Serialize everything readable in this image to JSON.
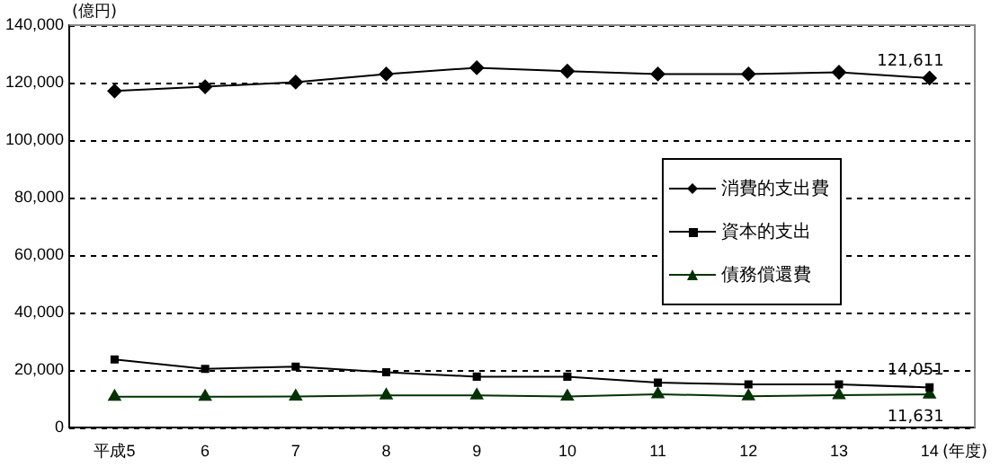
{
  "chart_data": {
    "type": "line",
    "ylabel": "(億円)",
    "categories": [
      "平成5",
      "6",
      "7",
      "8",
      "9",
      "10",
      "11",
      "12",
      "13",
      "14"
    ],
    "series": [
      {
        "name": "消費的支出費",
        "color": "#000000",
        "marker": "diamond",
        "values": [
          117100,
          118600,
          120200,
          123000,
          125200,
          124000,
          123000,
          123000,
          123600,
          121611
        ]
      },
      {
        "name": "資本的支出",
        "color": "#000000",
        "marker": "square",
        "values": [
          23800,
          20500,
          21300,
          19300,
          17800,
          17800,
          15700,
          15100,
          15100,
          14051
        ]
      },
      {
        "name": "債務償還費",
        "color": "#003300",
        "marker": "triangle",
        "values": [
          10800,
          10800,
          10900,
          11300,
          11300,
          10900,
          11700,
          11000,
          11400,
          11631
        ]
      }
    ],
    "ylim": [
      0,
      140000
    ],
    "yticks": [
      {
        "value": 0,
        "label": "0"
      },
      {
        "value": 20000,
        "label": "20,000"
      },
      {
        "value": 40000,
        "label": "40,000"
      },
      {
        "value": 60000,
        "label": "60,000"
      },
      {
        "value": 80000,
        "label": "80,000"
      },
      {
        "value": 100000,
        "label": "100,000"
      },
      {
        "value": 120000,
        "label": "120,000"
      },
      {
        "value": 140000,
        "label": "140,000"
      }
    ],
    "grid": "y",
    "line_style": "solid",
    "legend": "right",
    "annotations": [
      {
        "text": "121,611",
        "x": "14",
        "y": 121611
      },
      {
        "text": "14,051",
        "x": "14",
        "y": 14051
      },
      {
        "text": "11,631",
        "x": "14",
        "y": 11631
      },
      "(年度)"
    ]
  }
}
